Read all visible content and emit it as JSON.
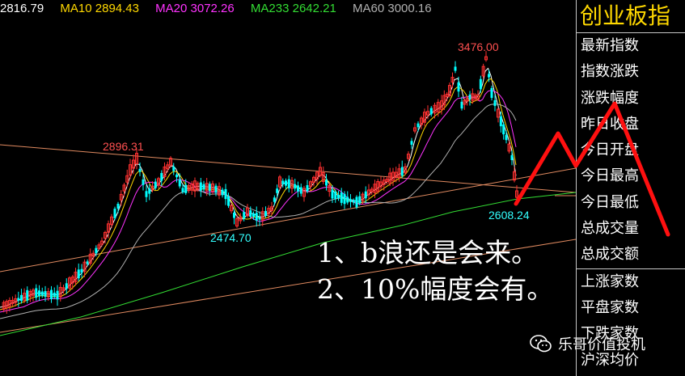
{
  "ma_bar": {
    "ma5": "2816.79",
    "ma10": "MA10 2894.43",
    "ma20": "MA20 3072.26",
    "ma233": "MA233 2642.21",
    "ma60": "MA60 3000.16",
    "colors": {
      "ma5": "#ffffff",
      "ma10": "#ffd800",
      "ma20": "#ff33ff",
      "ma233": "#33dd33",
      "ma60": "#b0b0b0"
    }
  },
  "panel": {
    "title": "创业板指",
    "items": [
      "最新指数",
      "指数涨跌",
      "涨跌幅度",
      "昨日收盘",
      "今日开盘",
      "今日最高",
      "今日最低",
      "总成交量",
      "总成交额",
      "上涨家数",
      "平盘家数",
      "下跌家数",
      "沪深均价"
    ]
  },
  "annotations": {
    "high": "3476.00",
    "left_peak": "2896.31",
    "low_mid": "2474.70",
    "low_recent": "2608.24"
  },
  "notes": {
    "line1": "1、b浪还是会来。",
    "line2": "2、10%幅度会有。"
  },
  "watermark": {
    "text": "乐哥价值投机"
  },
  "colors": {
    "up": "#ff3030",
    "down": "#00ffff",
    "annotation_up": "#ff5050",
    "annotation_down": "#33ffff",
    "forecast": "#ff1010"
  }
}
